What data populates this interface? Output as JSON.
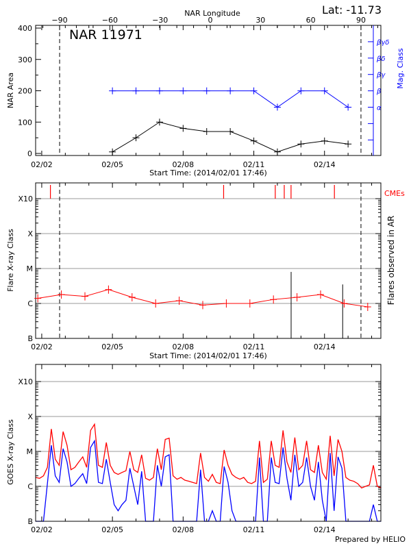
{
  "header": {
    "top_axis_label": "NAR Longitude",
    "lat_label": "Lat: -11.73",
    "footer": "Prepared by HELIO"
  },
  "chart_data": [
    {
      "type": "line",
      "title": "NAR 11971",
      "xlabel": "Start Time: (2014/02/01 17:46)",
      "ylabel": "NAR Area",
      "y2label": "Mag. Class",
      "top_xlabel": "NAR Longitude",
      "xlim": [
        "2014-02-01T17:46",
        "2014-02-16T09:50"
      ],
      "ylim": [
        0,
        400
      ],
      "x_tick_labels": [
        "02/02",
        "02/05",
        "02/08",
        "02/11",
        "02/14"
      ],
      "y_tick_labels": [
        "0",
        "100",
        "200",
        "300",
        "400"
      ],
      "top_tick_labels": [
        "-90",
        "-60",
        "-30",
        "0",
        "30",
        "60",
        "90"
      ],
      "y2_tick_labels": [
        "α",
        "β",
        "βγ",
        "βδ",
        "βγδ"
      ],
      "limb_longitudes": [
        -90,
        90
      ],
      "x": [
        "2014-02-05T00:00",
        "2014-02-06T00:00",
        "2014-02-07T00:00",
        "2014-02-08T00:00",
        "2014-02-09T00:00",
        "2014-02-10T00:00",
        "2014-02-11T00:00",
        "2014-02-12T00:00",
        "2014-02-13T00:00",
        "2014-02-14T00:00",
        "2014-02-15T00:00"
      ],
      "series": [
        {
          "name": "NAR Area",
          "color": "#000000",
          "values": [
            5,
            50,
            100,
            80,
            70,
            70,
            40,
            5,
            30,
            40,
            30
          ]
        },
        {
          "name": "Mag. Class",
          "color": "#0000ff",
          "values": [
            "β",
            "β",
            "β",
            "β",
            "β",
            "β",
            "β",
            "α",
            "β",
            "β",
            "α"
          ]
        }
      ]
    },
    {
      "type": "line",
      "xlabel": "Start Time: (2014/02/01 17:46)",
      "ylabel": "Flare X-ray Class",
      "y2label": "Flares observed in AR",
      "cme_label": "CMEs",
      "y_scale": "log",
      "y_tick_labels": [
        "B",
        "C",
        "M",
        "X",
        "X10"
      ],
      "x_tick_labels": [
        "02/02",
        "02/05",
        "02/08",
        "02/11",
        "02/14"
      ],
      "grid": true,
      "colors": {
        "line": "#ff0000",
        "flares": "#000000",
        "cmes": "#ff0000",
        "grid": "#999999"
      },
      "background_flux": {
        "start": "2014-02-01T20:00",
        "step_days": 1,
        "values": [
          1.4e-06,
          1.8e-06,
          1.6e-06,
          2.5e-06,
          1.5e-06,
          1e-06,
          1.2e-06,
          9e-07,
          1e-06,
          1e-06,
          1.3e-06,
          1.5e-06,
          1.8e-06,
          1e-06,
          8e-07
        ]
      },
      "flares": [
        {
          "time": "2014-02-12T14:00",
          "flux": 8e-06
        },
        {
          "time": "2014-02-14T18:30",
          "flux": 3.5e-06
        }
      ],
      "cmes": [
        "2014-02-02T08:50",
        "2014-02-09T17:15",
        "2014-02-11T21:50",
        "2014-02-12T07:00",
        "2014-02-12T13:55",
        "2014-02-14T10:05"
      ]
    },
    {
      "type": "line",
      "ylabel": "GOES X-ray Class",
      "y_scale": "log",
      "y_tick_labels": [
        "B",
        "C",
        "M",
        "X",
        "X10"
      ],
      "x_tick_labels": [
        "02/02",
        "02/05",
        "02/08",
        "02/11",
        "02/14"
      ],
      "grid": true,
      "start": "2014-02-01T17:46",
      "step_hours": 4,
      "series": [
        {
          "channel": "long",
          "color": "#ff0000",
          "values_1e-6": [
            1.8,
            1.7,
            2.0,
            3.5,
            44,
            6,
            4,
            37,
            15,
            3,
            3.5,
            5,
            7,
            3.5,
            40,
            60,
            4,
            3.5,
            18,
            4,
            2.5,
            2.2,
            2.5,
            2.8,
            10,
            3,
            2.5,
            8,
            1.7,
            1.5,
            1.8,
            12,
            3,
            22,
            24,
            2,
            1.6,
            1.8,
            1.5,
            1.4,
            1.3,
            1.2,
            9,
            1.8,
            1.4,
            2.2,
            1.3,
            1.2,
            11,
            4,
            2.2,
            1.8,
            1.6,
            1.8,
            1.3,
            1.2,
            1.4,
            20,
            1.3,
            1.6,
            20,
            4,
            3.5,
            40,
            5,
            2.5,
            25,
            3,
            4,
            20,
            3,
            2.5,
            15,
            2.5,
            1.6,
            28,
            2,
            22,
            10,
            1.8,
            1.5,
            1.4,
            1.2,
            0.9,
            1.0,
            1.1,
            4,
            1.0,
            0.9
          ]
        },
        {
          "channel": "short",
          "color": "#0000ff",
          "values_1e-6": [
            0.05,
            0.05,
            0.05,
            1.2,
            15,
            2,
            1.3,
            12,
            5,
            1,
            1.2,
            1.7,
            2.3,
            1.2,
            13,
            20,
            1.3,
            1.2,
            6,
            1.3,
            0.3,
            0.2,
            0.3,
            0.4,
            3.3,
            1,
            0.3,
            2.7,
            0.05,
            0.05,
            0.05,
            4,
            1,
            7,
            8,
            0.1,
            0.05,
            0.05,
            0.05,
            0.05,
            0.05,
            0.05,
            3,
            0.05,
            0.05,
            0.2,
            0.05,
            0.05,
            3.7,
            1.3,
            0.2,
            0.05,
            0.05,
            0.05,
            0.05,
            0.05,
            0.05,
            6.7,
            0.05,
            0.05,
            6.7,
            1.3,
            1.2,
            13,
            1.7,
            0.4,
            8,
            1,
            1.3,
            6.7,
            1,
            0.4,
            5,
            0.4,
            0.05,
            9,
            0.2,
            7,
            3.3,
            0.05,
            0.05,
            0.05,
            0.05,
            0.05,
            0.05,
            0.05,
            0.3,
            0.05,
            0.05
          ]
        }
      ]
    }
  ]
}
